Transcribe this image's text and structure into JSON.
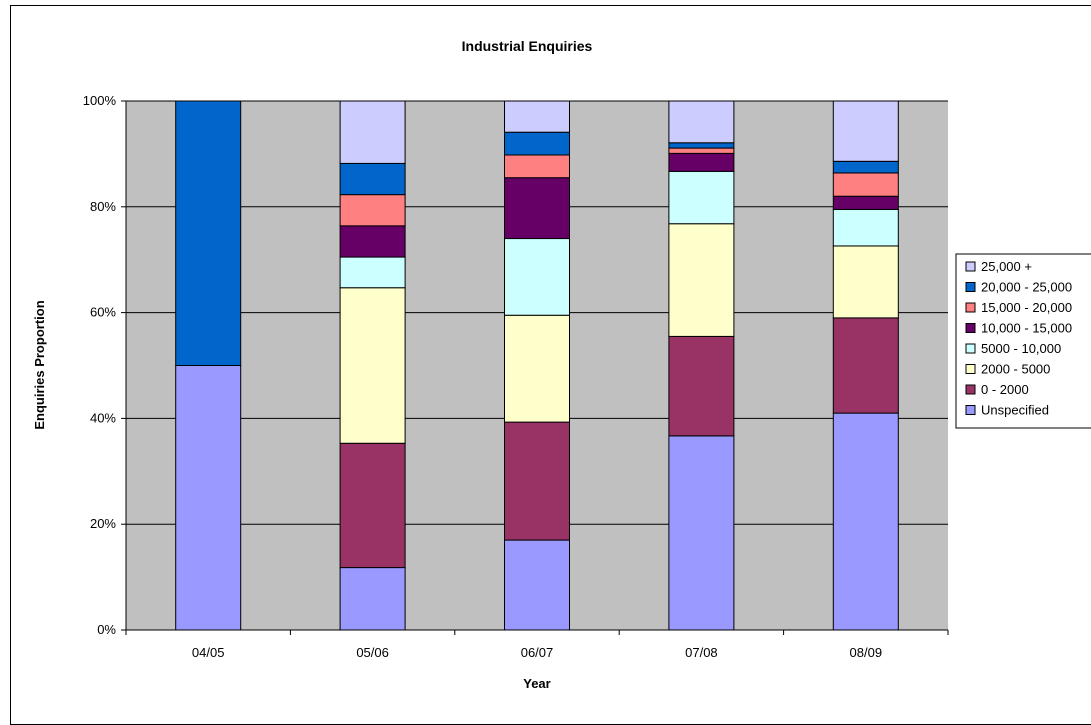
{
  "chart_data": {
    "type": "bar",
    "stacked": true,
    "title": "Industrial Enquiries",
    "xlabel": "Year",
    "ylabel": "Enquiries Proportion",
    "ylim": [
      0,
      100
    ],
    "y_ticks": [
      "0%",
      "20%",
      "40%",
      "60%",
      "80%",
      "100%"
    ],
    "grid": true,
    "legend_position": "right",
    "categories": [
      "04/05",
      "05/06",
      "06/07",
      "07/08",
      "08/09"
    ],
    "series": [
      {
        "name": "Unspecified",
        "color": "#9999ff",
        "values": [
          50,
          11.8,
          17,
          36.7,
          41
        ]
      },
      {
        "name": "0 - 2000",
        "color": "#993366",
        "values": [
          0,
          23.5,
          22.3,
          18.8,
          18
        ]
      },
      {
        "name": "2000 - 5000",
        "color": "#ffffcc",
        "values": [
          0,
          29.4,
          20.2,
          21.3,
          13.6
        ]
      },
      {
        "name": "5000 - 10,000",
        "color": "#ccffff",
        "values": [
          0,
          5.8,
          14.5,
          9.9,
          6.9
        ]
      },
      {
        "name": "10,000 - 15,000",
        "color": "#660066",
        "values": [
          0,
          5.9,
          11.5,
          3.4,
          2.5
        ]
      },
      {
        "name": "15,000 - 20,000",
        "color": "#ff8080",
        "values": [
          0,
          5.9,
          4.3,
          1,
          4.4
        ]
      },
      {
        "name": "20,000 - 25,000",
        "color": "#0066cc",
        "values": [
          50,
          5.9,
          4.3,
          1,
          2.2
        ]
      },
      {
        "name": "25,000 +",
        "color": "#ccccff",
        "values": [
          0,
          11.8,
          5.9,
          7.9,
          11.4
        ]
      }
    ],
    "plot_background": "#c0c0c0"
  }
}
